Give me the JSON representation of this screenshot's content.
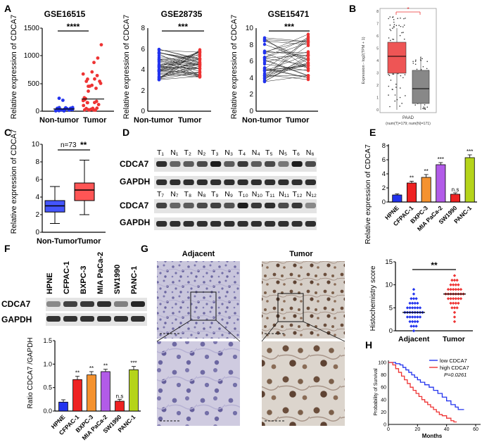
{
  "labels": {
    "A": "A",
    "B": "B",
    "C": "C",
    "D": "D",
    "E": "E",
    "F": "F",
    "G": "G",
    "H": "H"
  },
  "sig": {
    "four": "****",
    "three": "***",
    "two": "**",
    "ns": "n.s",
    "one": "*"
  },
  "common": {
    "ylab": "Relative expression of CDCA7",
    "nontumor": "Non-tumor",
    "tumor": "Tumor",
    "nontumor_c": "Non-Tumor"
  },
  "colors": {
    "blue": "#2233ee",
    "red": "#ee3333",
    "grey": "#888888",
    "boxred": "#ff5555",
    "boxblue": "#4455ff",
    "gepia_red": "#ee5555",
    "gepia_grey": "#888888"
  },
  "chart_data": [
    {
      "panel": "A1",
      "type": "scatter",
      "title": "GSE16515",
      "ylabel": "Relative expression of CDCA7",
      "categories": [
        "Non-tumor",
        "Tumor"
      ],
      "ylim": [
        0,
        1500
      ],
      "yticks": [
        "0",
        "500",
        "1000",
        "1500"
      ],
      "sig": "****",
      "series": [
        {
          "name": "Non-tumor",
          "median": 40
        },
        {
          "name": "Tumor",
          "median": 220
        }
      ]
    },
    {
      "panel": "A2",
      "type": "paired",
      "title": "GSE28735",
      "ylabel": "Relative expression of CDCA7",
      "categories": [
        "Non-tumor",
        "Tumor"
      ],
      "ylim": [
        0,
        8
      ],
      "yticks": [
        "0",
        "2",
        "4",
        "6",
        "8"
      ],
      "sig": "***",
      "series": [
        {
          "name": "Non-tumor",
          "range": [
            3,
            6
          ]
        },
        {
          "name": "Tumor",
          "range": [
            3.2,
            6
          ]
        }
      ]
    },
    {
      "panel": "A3",
      "type": "paired",
      "title": "GSE15471",
      "ylabel": "Relative expression of CDCA7",
      "categories": [
        "Non-tumor",
        "Tumor"
      ],
      "ylim": [
        0,
        10
      ],
      "yticks": [
        "0",
        "2",
        "4",
        "6",
        "8",
        "10"
      ],
      "sig": "***",
      "series": [
        {
          "name": "Non-tumor",
          "range": [
            3.5,
            9
          ]
        },
        {
          "name": "Tumor",
          "range": [
            3.5,
            9.5
          ]
        }
      ]
    },
    {
      "panel": "B",
      "type": "box",
      "title": "",
      "ylabel": "Expression - log2(TPM + 1)",
      "ylim": [
        0,
        8
      ],
      "yticks": [
        "0",
        "1",
        "2",
        "3",
        "4",
        "5",
        "6",
        "7",
        "8"
      ],
      "xlabel": "PAAD",
      "note": "(num(T)=179; num(N)=171)",
      "sig": "*"
    },
    {
      "panel": "C",
      "type": "box",
      "ylabel": "Relative expression of CDCA7",
      "categories": [
        "Non-Tumor",
        "Tumor"
      ],
      "ylim": [
        0,
        10
      ],
      "yticks": [
        "0",
        "2",
        "4",
        "6",
        "8",
        "10"
      ],
      "n_label": "n=73",
      "sig": "**",
      "series": [
        {
          "name": "Non-Tumor",
          "min": 1,
          "q1": 2.3,
          "median": 3,
          "q3": 3.6,
          "max": 5.2
        },
        {
          "name": "Tumor",
          "min": 2,
          "q1": 3.6,
          "median": 4.8,
          "q3": 5.6,
          "max": 8.2
        }
      ]
    },
    {
      "panel": "E",
      "type": "bar",
      "ylabel": "Relative expression of CDCA7",
      "categories": [
        "HPNE",
        "CFPAC-1",
        "BXPC-3",
        "MIA PaCa-2",
        "SW1990",
        "PANC-1"
      ],
      "values": [
        1.0,
        2.7,
        3.5,
        5.3,
        1.1,
        6.3
      ],
      "errors": [
        0.15,
        0.25,
        0.4,
        0.3,
        0.2,
        0.4
      ],
      "sigs": [
        "",
        "**",
        "**",
        "***",
        "n.s",
        "***"
      ],
      "ylim": [
        0,
        8
      ],
      "yticks": [
        "0",
        "2",
        "4",
        "6",
        "8"
      ]
    },
    {
      "panel": "F",
      "type": "bar",
      "ylabel": "Ratio CDCA7 /GAPDH",
      "categories": [
        "HPNE",
        "CFPAC-1",
        "BXPC-3",
        "MIA PaCa-2",
        "SW1990",
        "PANC-1"
      ],
      "values": [
        0.19,
        0.67,
        0.77,
        0.84,
        0.21,
        0.88
      ],
      "errors": [
        0.05,
        0.07,
        0.07,
        0.05,
        0.04,
        0.07
      ],
      "sigs": [
        "",
        "**",
        "**",
        "**",
        "n.s",
        "***"
      ],
      "ylim": [
        0,
        1.5
      ],
      "yticks": [
        "0.0",
        "0.5",
        "1.0",
        "1.5"
      ]
    },
    {
      "panel": "G2",
      "type": "scatter",
      "ylabel": "Histochemistry score",
      "categories": [
        "Adjacent",
        "Tumor"
      ],
      "ylim": [
        0,
        15
      ],
      "yticks": [
        "0",
        "5",
        "10",
        "15"
      ],
      "sig": "**",
      "series": [
        {
          "name": "Adjacent",
          "median": 4,
          "range": [
            0,
            9
          ]
        },
        {
          "name": "Tumor",
          "median": 8,
          "range": [
            2,
            12
          ]
        }
      ]
    },
    {
      "panel": "H",
      "type": "line",
      "ylabel": "Probability of Survival",
      "xlabel": "Months",
      "xlim": [
        0,
        60
      ],
      "ylim": [
        0,
        100
      ],
      "xticks": [
        "0",
        "20",
        "40",
        "60"
      ],
      "yticks": [
        "0",
        "20",
        "40",
        "60",
        "80",
        "100"
      ],
      "legend": [
        "low CDCA7",
        "high CDCA7"
      ],
      "pvalue": "P=0.0261",
      "series": [
        {
          "name": "low CDCA7",
          "x": [
            0,
            5,
            8,
            10,
            12,
            14,
            16,
            18,
            20,
            22,
            25,
            28,
            31,
            34,
            37,
            40,
            43,
            46,
            48,
            50,
            52
          ],
          "y": [
            100,
            98,
            96,
            92,
            88,
            84,
            80,
            76,
            72,
            68,
            64,
            60,
            55,
            50,
            44,
            38,
            32,
            28,
            24,
            24,
            24
          ]
        },
        {
          "name": "high CDCA7",
          "x": [
            0,
            3,
            5,
            7,
            9,
            11,
            13,
            15,
            17,
            19,
            21,
            23,
            25,
            27,
            29,
            31,
            33,
            35,
            37,
            40,
            43,
            45,
            47
          ],
          "y": [
            100,
            96,
            90,
            84,
            78,
            72,
            66,
            60,
            55,
            50,
            45,
            40,
            36,
            32,
            28,
            24,
            20,
            16,
            14,
            10,
            6,
            4,
            4
          ]
        }
      ]
    }
  ],
  "D": {
    "row1_lanes": [
      "T₁",
      "N₁",
      "T₂",
      "N₂",
      "T₃",
      "N₃",
      "T₄",
      "N₄",
      "T₅",
      "N₅",
      "T₆",
      "N₆"
    ],
    "row2_lanes": [
      "T₇",
      "N₇",
      "T₈",
      "N₈",
      "T₉",
      "N₉",
      "T₁₀",
      "N₁₀",
      "T₁₁",
      "N₁₁",
      "T₁₂",
      "N₁₂"
    ],
    "band1": "CDCA7",
    "band2": "GAPDH",
    "row1_int": [
      0.85,
      0.55,
      0.6,
      0.7,
      0.95,
      0.6,
      0.8,
      0.6,
      0.7,
      0.45,
      0.95,
      0.7
    ],
    "row2_int": [
      0.75,
      0.55,
      0.6,
      0.7,
      0.75,
      0.65,
      0.95,
      0.8,
      0.85,
      0.7,
      0.8,
      0.35
    ]
  },
  "F_blot": {
    "lanes": [
      "HPNE",
      "CFPAC-1",
      "BXPC-3",
      "MIA PaCa-2",
      "SW1990",
      "PANC-1"
    ],
    "band1": "CDCA7",
    "band2": "GAPDH",
    "int": [
      0.35,
      0.75,
      0.8,
      0.85,
      0.4,
      0.9
    ]
  },
  "G": {
    "adjacent": "Adjacent",
    "tumor": "Tumor"
  }
}
